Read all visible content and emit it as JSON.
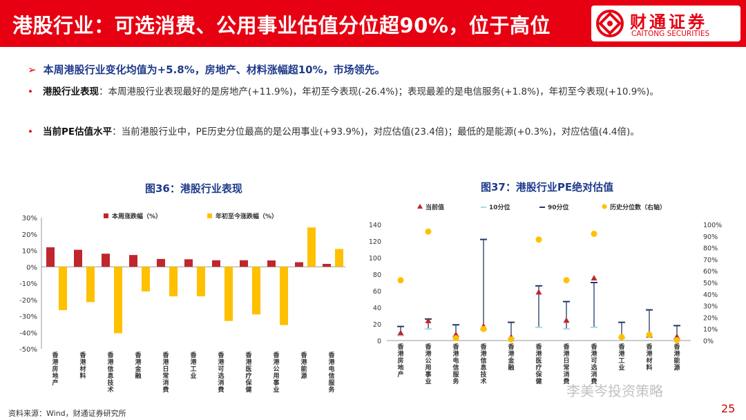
{
  "header": {
    "title": "港股行业：可选消费、公用事业估值分位超90%，位于高位",
    "logo_cn": "财通证券",
    "logo_en": "CAITONG SECURITIES"
  },
  "lead": "本周港股行业变化均值为+5.8%，房地产、材料涨幅超10%，市场领先。",
  "bullets": [
    {
      "label": "港股行业表现",
      "text": "：本周港股行业表现最好的是房地产(+11.9%)，年初至今表现(-26.4%)；表现最差的是电信服务(+1.8%)，年初至今表现(+10.9%)。"
    },
    {
      "label": "当前PE估值水平",
      "text": "：当前港股行业中，PE历史分位最高的是公用事业(+93.9%)，对应估值(23.4倍)；最低的是能源(+0.3%)，对应估值(4.4倍)。"
    }
  ],
  "fig36_title": "图36：港股行业表现",
  "fig37_title": "图37：港股行业PE绝对估值",
  "chart_data": [
    {
      "type": "bar",
      "title": "图36：港股行业表现",
      "categories": [
        "香港房地产",
        "香港材料",
        "香港信息技术",
        "香港金融",
        "香港日常消费",
        "香港工业",
        "香港可选消费",
        "香港医疗保健",
        "香港公用事业",
        "香港能源",
        "香港电信服务"
      ],
      "series": [
        {
          "name": "本周涨跌幅（%）",
          "color": "#c0262d",
          "values": [
            11.9,
            10.4,
            8.0,
            7.2,
            4.8,
            4.6,
            4.0,
            4.0,
            3.9,
            2.8,
            1.8
          ]
        },
        {
          "name": "年初至今涨跌幅（%）",
          "color": "#ffc000",
          "values": [
            -26.4,
            -21.5,
            -40.5,
            -15.0,
            -18.0,
            -18.0,
            -33.0,
            -29.0,
            -35.5,
            24.0,
            10.9
          ]
        }
      ],
      "ylim": [
        -50,
        30
      ],
      "yticks": [
        "30%",
        "20%",
        "10%",
        "0%",
        "-10%",
        "-20%",
        "-30%",
        "-40%",
        "-50%"
      ],
      "legend": "top"
    },
    {
      "type": "scatter",
      "title": "图37：港股行业PE绝对估值",
      "categories": [
        "香港房地产",
        "香港公用事业",
        "香港电信服务",
        "香港信息技术",
        "香港金融",
        "香港医疗保健",
        "香港日常消费",
        "香港可选消费",
        "香港工业",
        "香港材料",
        "香港能源"
      ],
      "series": [
        {
          "name": "当前值",
          "color": "#c0262d",
          "values": [
            9,
            23.4,
            7,
            17,
            4,
            58,
            24,
            75,
            5,
            6,
            4.4
          ]
        },
        {
          "name": "10分位",
          "color": "#a6d8e8",
          "values": [
            6,
            14,
            5,
            13,
            3,
            16,
            14,
            16,
            3,
            4,
            2
          ]
        },
        {
          "name": "90分位",
          "color": "#1f3864",
          "values": [
            17,
            26,
            19,
            122,
            22,
            66,
            47,
            70,
            22,
            37,
            18
          ]
        },
        {
          "name": "历史分位数（右轴）",
          "color": "#ffc000",
          "values": [
            52,
            93.9,
            2,
            10,
            1,
            87,
            52,
            92,
            3,
            5,
            0.3
          ]
        }
      ],
      "ylim": [
        0,
        140
      ],
      "yticks": [
        "140",
        "120",
        "100",
        "80",
        "60",
        "40",
        "20",
        "0"
      ],
      "y2lim": [
        0,
        100
      ],
      "y2ticks": [
        "100%",
        "90%",
        "80%",
        "70%",
        "60%",
        "50%",
        "40%",
        "30%",
        "20%",
        "10%",
        "0%"
      ],
      "legend": "top"
    }
  ],
  "source": "资料来源：Wind，财通证券研究所",
  "page_number": "25",
  "watermark": "李美岑投资策略"
}
